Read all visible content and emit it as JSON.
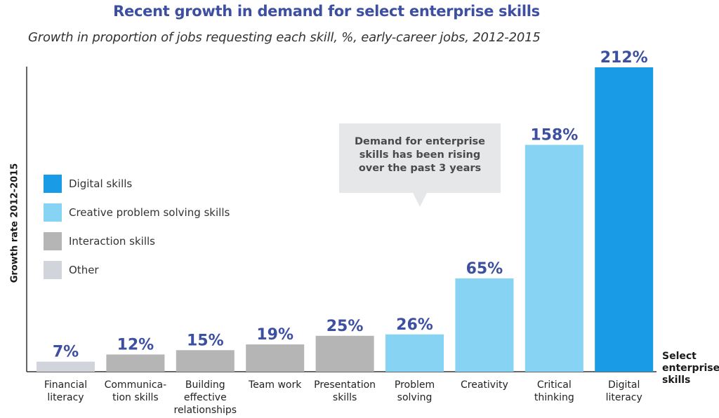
{
  "chart_data": {
    "type": "bar",
    "title": "Recent growth in demand for select enterprise skills",
    "subtitle": "Growth in proportion of jobs requesting each skill, %, early-career jobs, 2012-2015",
    "ylabel": "Growth rate 2012-2015",
    "xlabel": [
      "Select",
      "enterprise",
      "skills"
    ],
    "ylim": [
      0,
      212
    ],
    "grid": false,
    "legend_placement": "left",
    "categories": [
      [
        "Financial",
        "literacy"
      ],
      [
        "Communica-",
        "tion skills"
      ],
      [
        "Building",
        "effective",
        "relationships"
      ],
      [
        "Team work"
      ],
      [
        "Presentation",
        "skills"
      ],
      [
        "Problem",
        "solving"
      ],
      [
        "Creativity"
      ],
      [
        "Critical",
        "thinking"
      ],
      [
        "Digital",
        "literacy"
      ]
    ],
    "values": [
      7,
      12,
      15,
      19,
      25,
      26,
      65,
      158,
      212
    ],
    "value_labels": [
      "7%",
      "12%",
      "15%",
      "19%",
      "25%",
      "26%",
      "65%",
      "158%",
      "212%"
    ],
    "groups": [
      "other",
      "interaction",
      "interaction",
      "interaction",
      "interaction",
      "creative",
      "creative",
      "creative",
      "digital"
    ],
    "legend": [
      {
        "key": "digital",
        "label": "Digital skills",
        "color": "#1a9be6"
      },
      {
        "key": "creative",
        "label": "Creative problem solving skills",
        "color": "#86d3f4"
      },
      {
        "key": "interaction",
        "label": "Interaction skills",
        "color": "#b5b5b5"
      },
      {
        "key": "other",
        "label": "Other",
        "color": "#d2d4dc"
      }
    ],
    "annotation": "Demand for enterprise skills has been rising over the past 3 years"
  }
}
